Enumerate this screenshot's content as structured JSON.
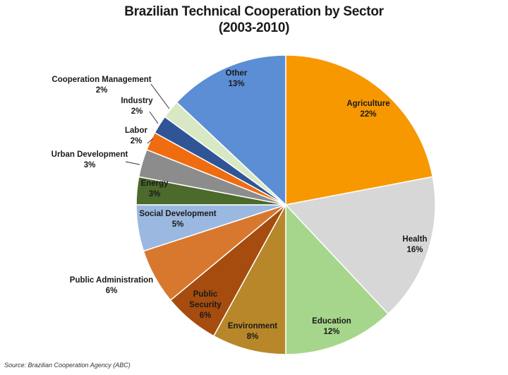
{
  "chart_data": {
    "type": "pie",
    "title": "Brazilian Technical Cooperation by Sector",
    "subtitle": "(2003-2010)",
    "source": "Source: Brazilian Cooperation Agency (ABC)",
    "slices": [
      {
        "label": "Agriculture",
        "value": 22,
        "value_label": "22%",
        "color": "#f79800"
      },
      {
        "label": "Health",
        "value": 16,
        "value_label": "16%",
        "color": "#d7d7d7"
      },
      {
        "label": "Education",
        "value": 12,
        "value_label": "12%",
        "color": "#a6d68b"
      },
      {
        "label": "Environment",
        "value": 8,
        "value_label": "8%",
        "color": "#b8872a"
      },
      {
        "label": "Public Security",
        "value": 6,
        "value_label": "6%",
        "color": "#a54c0e"
      },
      {
        "label": "Public Administration",
        "value": 6,
        "value_label": "6%",
        "color": "#d8782f"
      },
      {
        "label": "Social Development",
        "value": 5,
        "value_label": "5%",
        "color": "#9bb8e0"
      },
      {
        "label": "Energy",
        "value": 3,
        "value_label": "3%",
        "color": "#4b6a2b"
      },
      {
        "label": "Urban Development",
        "value": 3,
        "value_label": "3%",
        "color": "#8c8c8c"
      },
      {
        "label": "Labor",
        "value": 2,
        "value_label": "2%",
        "color": "#ef6c10"
      },
      {
        "label": "Industry",
        "value": 2,
        "value_label": "2%",
        "color": "#2f5597"
      },
      {
        "label": "Cooperation Management",
        "value": 2,
        "value_label": "2%",
        "color": "#d9e8c4"
      },
      {
        "label": "Other",
        "value": 13,
        "value_label": "13%",
        "color": "#5b8ed4"
      }
    ]
  }
}
